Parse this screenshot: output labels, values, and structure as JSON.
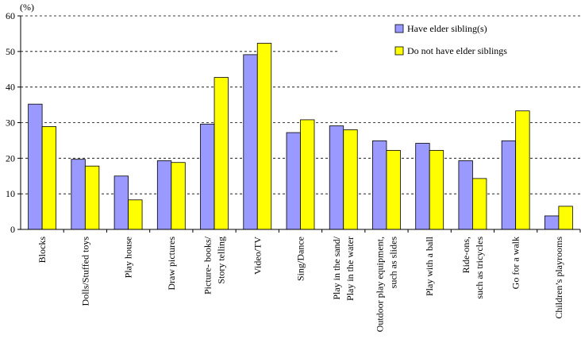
{
  "chart_data": {
    "type": "bar",
    "title": "",
    "unit_label": "(%)",
    "xlabel": "",
    "ylabel": "",
    "ylim": [
      0,
      60
    ],
    "yticks": [
      0,
      10,
      20,
      30,
      40,
      50,
      60
    ],
    "grid": true,
    "legend_position": "top-right",
    "categories": [
      [
        "Blocks"
      ],
      [
        "Dolls/Stuffed toys"
      ],
      [
        "Play house"
      ],
      [
        "Draw pictures"
      ],
      [
        "Picture- books/",
        "Story telling"
      ],
      [
        "Video/TV"
      ],
      [
        "Sing/Dance"
      ],
      [
        "Play in the sand/",
        "Play in the water"
      ],
      [
        "Outdoor play equipment,",
        "such as slides"
      ],
      [
        "Play with a ball"
      ],
      [
        "Ride-ons,",
        "such as tricycles"
      ],
      [
        "Go for a walk"
      ],
      [
        "Children’s playrooms"
      ]
    ],
    "series": [
      {
        "name": "Have elder sibling(s)",
        "color": "#9999ff",
        "values": [
          35.2,
          19.7,
          15.0,
          19.3,
          29.6,
          49.1,
          27.2,
          29.1,
          24.9,
          24.2,
          19.3,
          24.9,
          3.8
        ]
      },
      {
        "name": "Do not have elder siblings",
        "color": "#ffff00",
        "values": [
          28.9,
          17.8,
          8.3,
          18.8,
          42.7,
          52.3,
          30.8,
          28.0,
          22.2,
          22.2,
          14.3,
          33.3,
          6.5
        ]
      }
    ]
  }
}
